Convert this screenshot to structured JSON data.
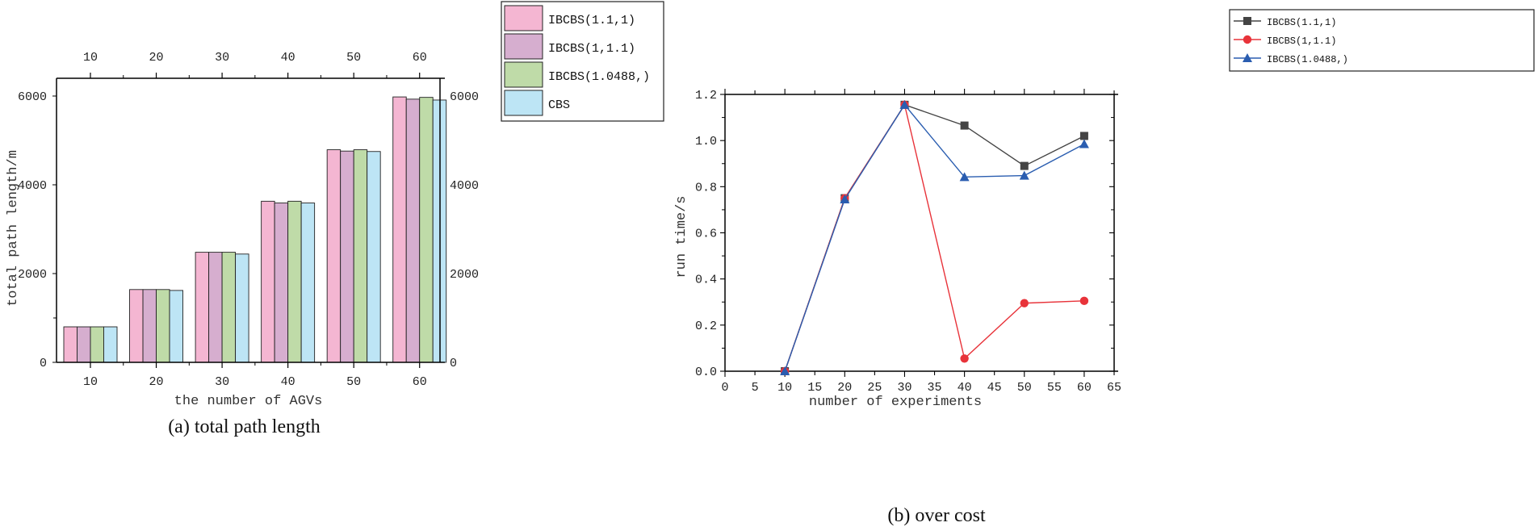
{
  "chart_data": [
    {
      "type": "bar",
      "caption": "(a)  total path length",
      "xlabel": "the number of AGVs",
      "ylabel": "total path length/m",
      "categories": [
        "10",
        "20",
        "30",
        "40",
        "50",
        "60"
      ],
      "ylim": [
        0,
        6400
      ],
      "yticks": [
        0,
        2000,
        4000,
        6000
      ],
      "grid": false,
      "legend_placement": "top-right outside",
      "series": [
        {
          "name": "IBCBS(1.1,1)",
          "color": "#f4b6d2",
          "values": [
            800,
            1640,
            2480,
            3630,
            4790,
            5980
          ]
        },
        {
          "name": "IBCBS(1,1.1)",
          "color": "#d6aecf",
          "values": [
            800,
            1640,
            2480,
            3590,
            4760,
            5930
          ]
        },
        {
          "name": "IBCBS(1.0488,)",
          "color": "#bfdba8",
          "values": [
            800,
            1640,
            2480,
            3630,
            4790,
            5970
          ]
        },
        {
          "name": "CBS",
          "color": "#bde5f5",
          "values": [
            800,
            1620,
            2440,
            3590,
            4750,
            5910
          ]
        }
      ]
    },
    {
      "type": "line",
      "caption": "(b)  over cost",
      "xlabel": "number of experiments",
      "ylabel": "run time/s",
      "x": [
        10,
        20,
        30,
        40,
        50,
        60
      ],
      "xlim": [
        0,
        65
      ],
      "xticks": [
        0,
        5,
        10,
        15,
        20,
        25,
        30,
        35,
        40,
        45,
        50,
        55,
        60,
        65
      ],
      "ylim": [
        0,
        1.2
      ],
      "yticks": [
        "0.0",
        "0.2",
        "0.4",
        "0.6",
        "0.8",
        "1.0",
        "1.2"
      ],
      "grid": false,
      "legend_placement": "top-right",
      "series": [
        {
          "name": "IBCBS(1.1,1)",
          "color": "#444444",
          "marker": "square",
          "values": [
            0,
            0.75,
            1.155,
            1.065,
            0.89,
            1.02
          ]
        },
        {
          "name": "IBCBS(1,1.1)",
          "color": "#e8333a",
          "marker": "circle",
          "values": [
            0,
            0.75,
            1.155,
            0.055,
            0.295,
            0.305
          ]
        },
        {
          "name": "IBCBS(1.0488,)",
          "color": "#2a5db0",
          "marker": "triangle",
          "values": [
            0,
            0.745,
            1.155,
            0.842,
            0.848,
            0.985
          ]
        }
      ]
    }
  ]
}
